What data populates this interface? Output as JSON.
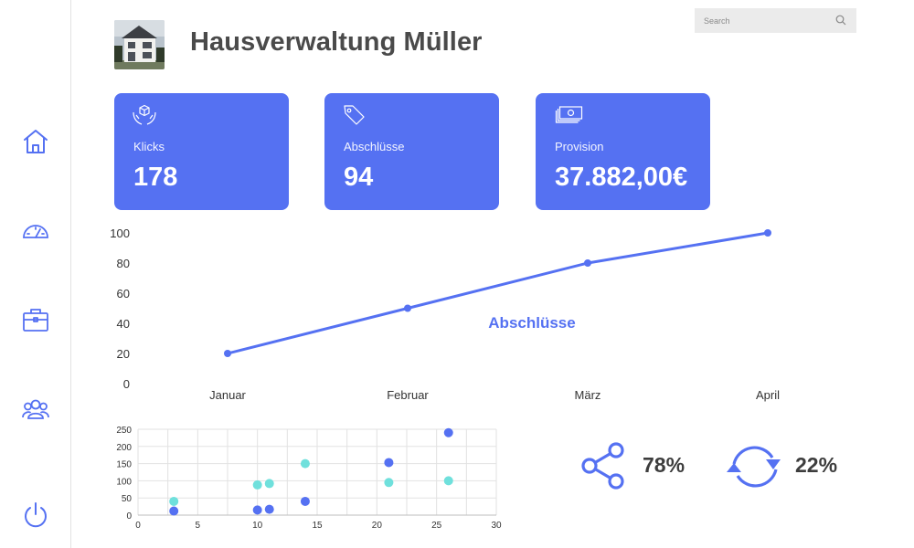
{
  "header": {
    "title": "Hausverwaltung Müller"
  },
  "search": {
    "placeholder": "Search"
  },
  "sidebar": {
    "items": [
      {
        "icon": "home-icon"
      },
      {
        "icon": "speedometer-icon"
      },
      {
        "icon": "briefcase-icon"
      },
      {
        "icon": "users-icon"
      },
      {
        "icon": "power-icon"
      }
    ]
  },
  "kpis": [
    {
      "label": "Klicks",
      "value": "178",
      "icon": "hands-box-icon"
    },
    {
      "label": "Abschlüsse",
      "value": "94",
      "icon": "price-tag-icon"
    },
    {
      "label": "Provision",
      "value": "37.882,00€",
      "icon": "money-stack-icon"
    }
  ],
  "stats": [
    {
      "icon": "share-icon",
      "value": "78%"
    },
    {
      "icon": "refresh-icon",
      "value": "22%"
    }
  ],
  "colors": {
    "accent": "#5571f2",
    "teal": "#6fe0dc",
    "text": "#3d3d3d"
  },
  "chart_data": [
    {
      "type": "line",
      "categories": [
        "Januar",
        "Februar",
        "März",
        "April"
      ],
      "series": [
        {
          "name": "Abschlüsse",
          "values": [
            20,
            50,
            80,
            100
          ]
        }
      ],
      "ylim": [
        0,
        100
      ],
      "yticks": [
        0,
        20,
        40,
        60,
        80,
        100
      ],
      "grid": false
    },
    {
      "type": "scatter",
      "xlim": [
        0,
        30
      ],
      "ylim": [
        0,
        250
      ],
      "xticks": [
        0,
        5,
        10,
        15,
        20,
        25,
        30
      ],
      "yticks": [
        0,
        50,
        100,
        150,
        200,
        250
      ],
      "grid": true,
      "series": [
        {
          "color": "#5571f2",
          "points": [
            [
              3,
              12
            ],
            [
              10,
              15
            ],
            [
              11,
              17
            ],
            [
              14,
              40
            ],
            [
              21,
              153
            ],
            [
              26,
              240
            ]
          ]
        },
        {
          "color": "#6fe0dc",
          "points": [
            [
              3,
              40
            ],
            [
              10,
              88
            ],
            [
              11,
              92
            ],
            [
              14,
              150
            ],
            [
              21,
              95
            ],
            [
              26,
              100
            ]
          ]
        }
      ]
    }
  ]
}
